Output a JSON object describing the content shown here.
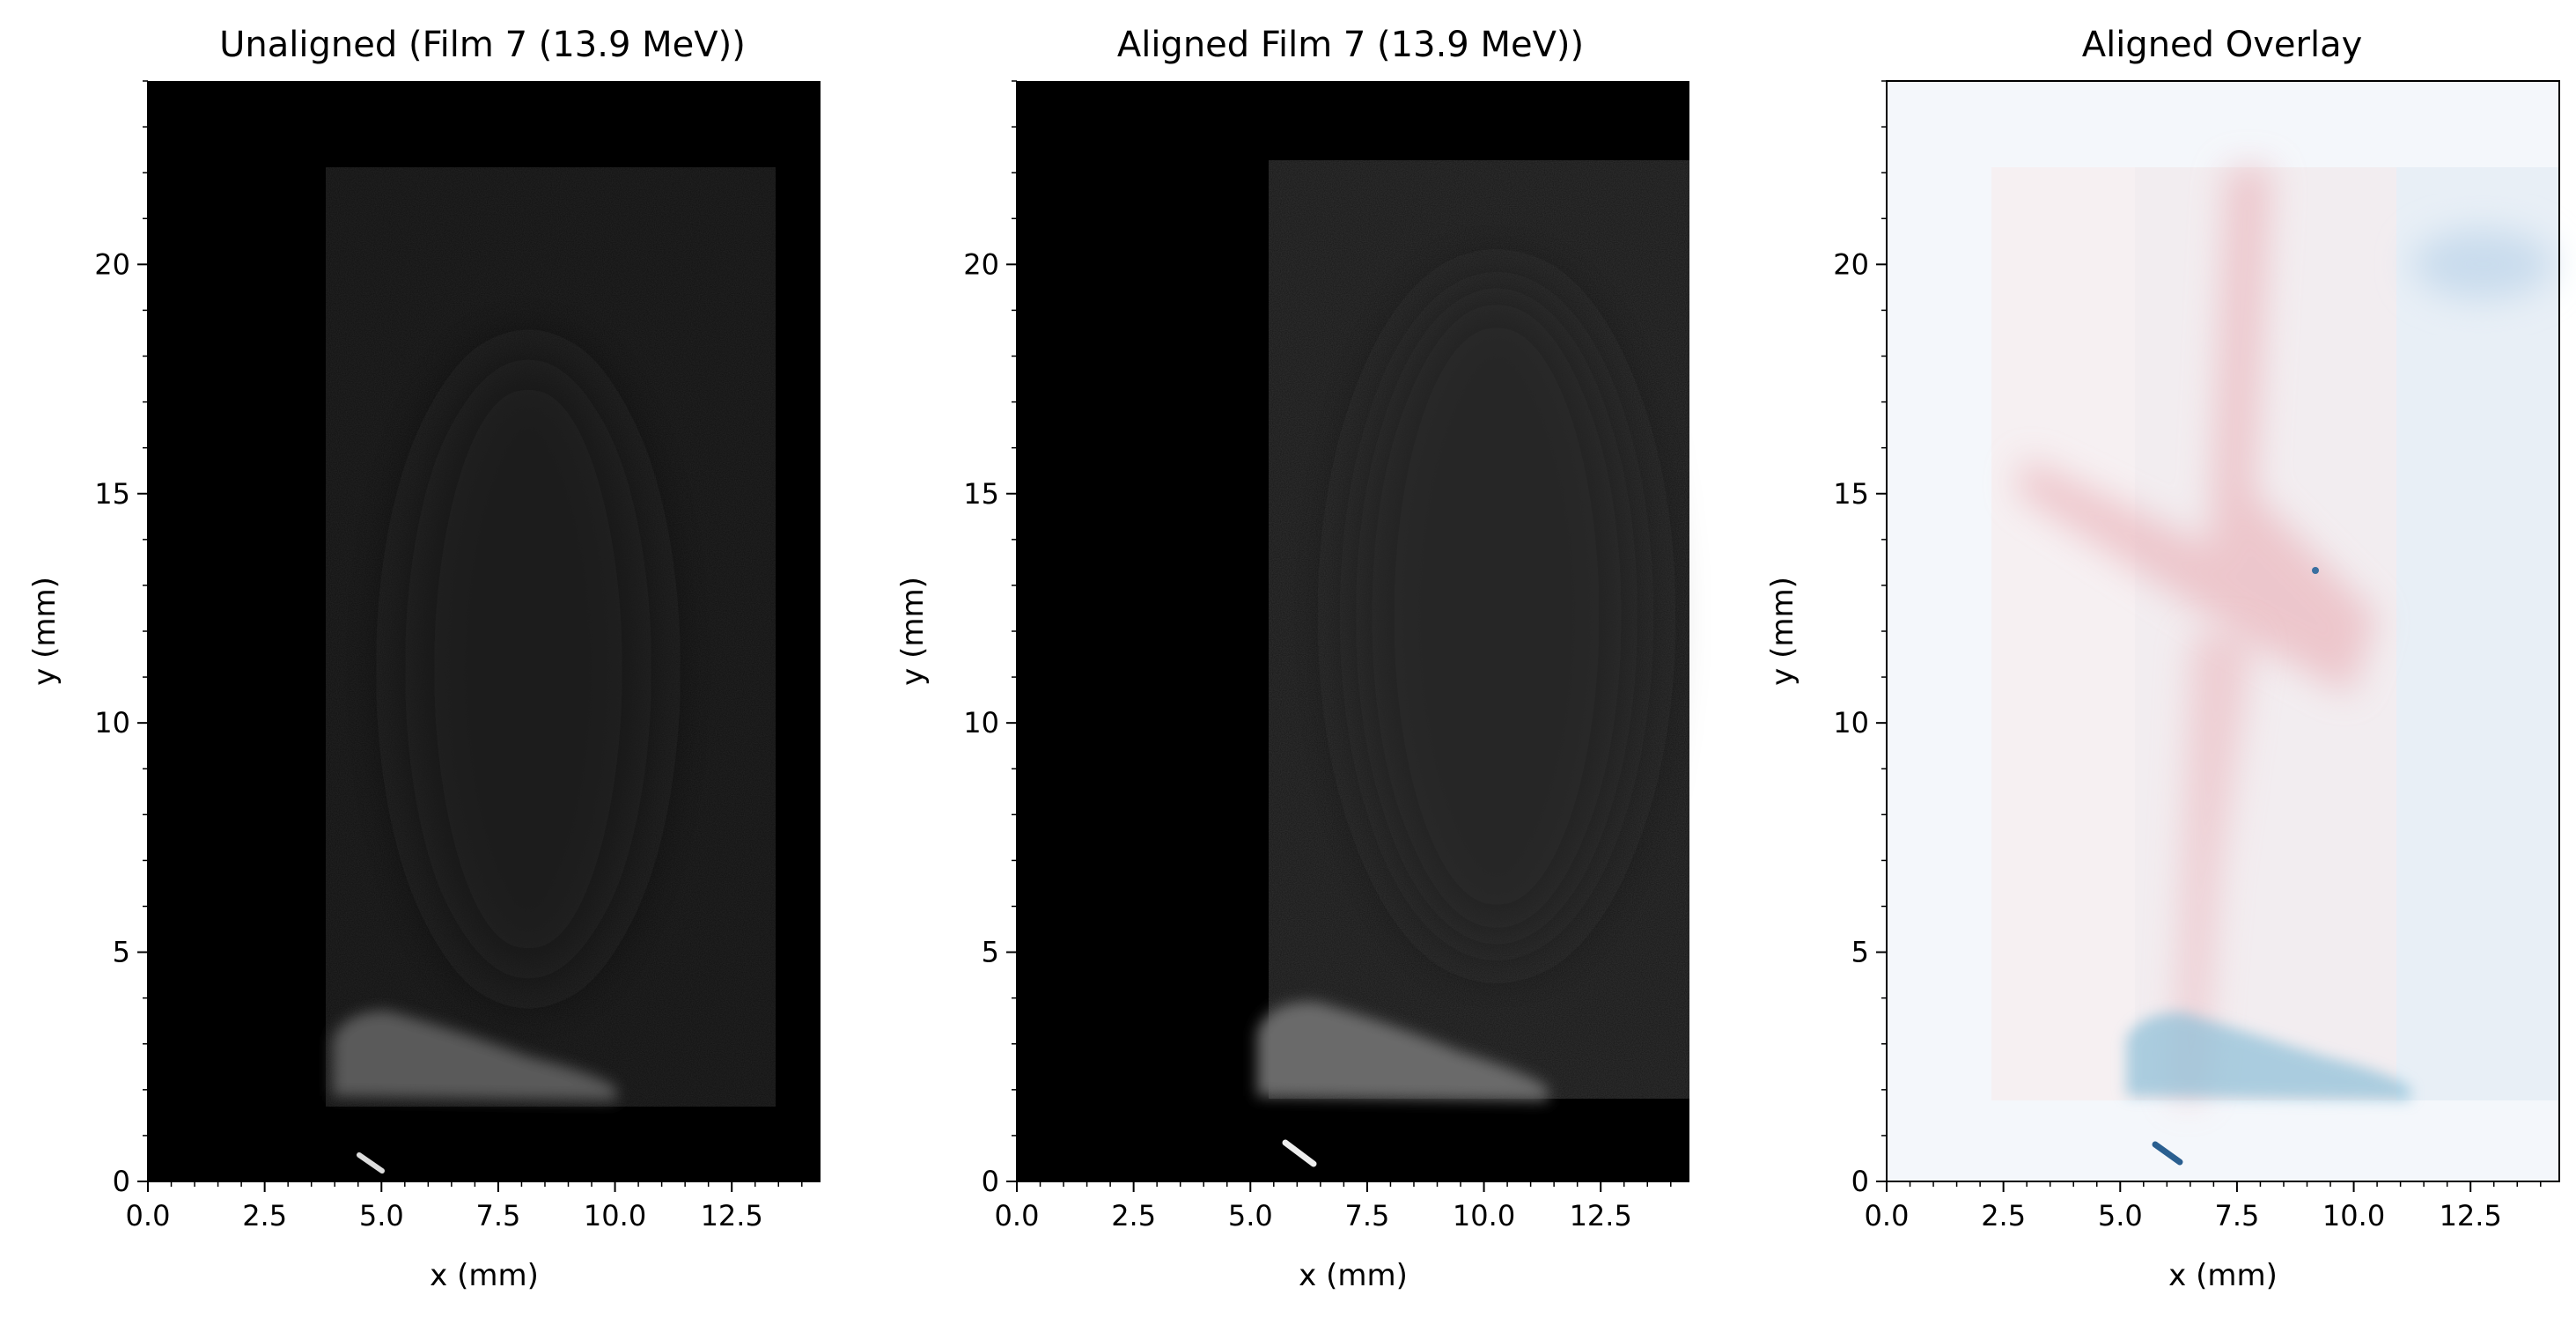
{
  "chart_data": [
    {
      "type": "heatmap",
      "title": "Unaligned (Film 7 (13.9 MeV))",
      "xlabel": "x (mm)",
      "ylabel": "y (mm)",
      "xlim": [
        0,
        14.4
      ],
      "ylim": [
        0,
        24
      ],
      "xticks": [
        "0.0",
        "2.5",
        "5.0",
        "7.5",
        "10.0",
        "12.5"
      ],
      "yticks": [
        "0",
        "5",
        "10",
        "15",
        "20"
      ],
      "colormap": "gray",
      "film_region": {
        "x": [
          3.8,
          13.6
        ],
        "y": [
          1.8,
          21.8
        ]
      },
      "bright_region": {
        "x": [
          3.9,
          10.1
        ],
        "y": [
          1.8,
          3.6
        ]
      }
    },
    {
      "type": "heatmap",
      "title": "Aligned Film 7 (13.9 MeV))",
      "xlabel": "x (mm)",
      "ylabel": "y (mm)",
      "xlim": [
        0,
        14.4
      ],
      "ylim": [
        0,
        24
      ],
      "xticks": [
        "0.0",
        "2.5",
        "5.0",
        "7.5",
        "10.0",
        "12.5"
      ],
      "yticks": [
        "0",
        "5",
        "10",
        "15",
        "20"
      ],
      "colormap": "gray",
      "film_region": {
        "x": [
          5.2,
          14.4
        ],
        "y": [
          1.8,
          22.0
        ]
      },
      "bright_region": {
        "x": [
          5.1,
          11.4
        ],
        "y": [
          1.8,
          3.8
        ]
      }
    },
    {
      "type": "heatmap",
      "title": "Aligned Overlay",
      "xlabel": "x (mm)",
      "ylabel": "y (mm)",
      "xlim": [
        0,
        14.4
      ],
      "ylim": [
        0,
        24
      ],
      "xticks": [
        "0.0",
        "2.5",
        "5.0",
        "7.5",
        "10.0",
        "12.5"
      ],
      "yticks": [
        "0",
        "5",
        "10",
        "15",
        "20"
      ],
      "colors": {
        "red_channel": "#e8a0a8",
        "blue_channel": "#5a9cc8",
        "background": "#f4f7fb"
      }
    }
  ]
}
